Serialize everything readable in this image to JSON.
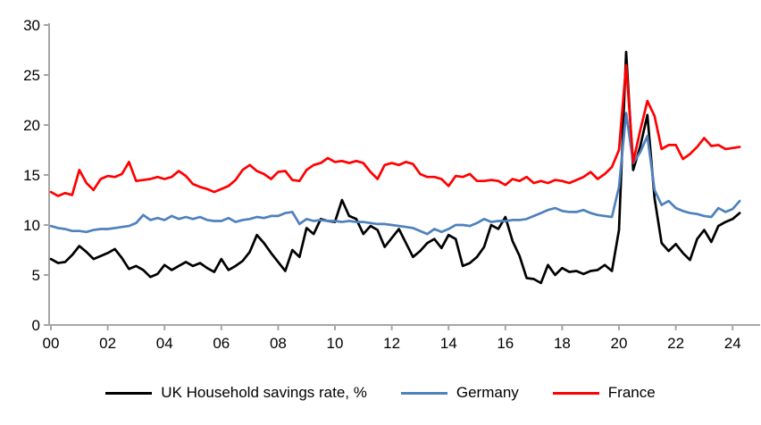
{
  "chart_data": {
    "type": "line",
    "title": "",
    "xlabel": "",
    "ylabel": "",
    "x_unit": "year (quarterly observations)",
    "x_start": 2000,
    "x_step": 0.25,
    "xlim": [
      2000,
      2025
    ],
    "ylim": [
      0,
      30
    ],
    "y_ticks": [
      0,
      5,
      10,
      15,
      20,
      25,
      30
    ],
    "x_tick_years": [
      2000,
      2002,
      2004,
      2006,
      2008,
      2010,
      2012,
      2014,
      2016,
      2018,
      2020,
      2022,
      2024
    ],
    "x_tick_labels": [
      "00",
      "02",
      "04",
      "06",
      "08",
      "10",
      "12",
      "14",
      "16",
      "18",
      "20",
      "22",
      "24"
    ],
    "grid": false,
    "legend_position": "bottom",
    "background_color": "#FFFFFF",
    "axis_color": "#A6A6A6",
    "text_color": "#000000",
    "series": [
      {
        "name": "UK Household savings rate, %",
        "color": "#000000",
        "values": [
          6.6,
          6.2,
          6.3,
          7.0,
          7.9,
          7.3,
          6.6,
          6.9,
          7.2,
          7.6,
          6.7,
          5.6,
          5.9,
          5.5,
          4.8,
          5.1,
          6.0,
          5.5,
          5.9,
          6.3,
          5.9,
          6.2,
          5.7,
          5.3,
          6.6,
          5.5,
          5.9,
          6.4,
          7.3,
          9.0,
          8.2,
          7.2,
          6.3,
          5.4,
          7.5,
          6.8,
          9.7,
          9.1,
          10.6,
          10.4,
          10.3,
          12.5,
          10.9,
          10.6,
          9.1,
          9.9,
          9.5,
          7.8,
          8.7,
          9.6,
          8.2,
          6.8,
          7.4,
          8.2,
          8.6,
          7.7,
          9.0,
          8.6,
          5.9,
          6.2,
          6.8,
          7.8,
          10.0,
          9.6,
          10.8,
          8.4,
          6.9,
          4.7,
          4.6,
          4.2,
          6.0,
          5.0,
          5.7,
          5.3,
          5.4,
          5.1,
          5.4,
          5.5,
          6.0,
          5.4,
          9.5,
          27.3,
          15.5,
          17.9,
          21.0,
          12.7,
          8.2,
          7.4,
          8.1,
          7.2,
          6.5,
          8.6,
          9.5,
          8.3,
          9.9,
          10.3,
          10.6,
          11.2
        ]
      },
      {
        "name": "Germany",
        "color": "#4F81BD",
        "values": [
          9.9,
          9.7,
          9.6,
          9.4,
          9.4,
          9.3,
          9.5,
          9.6,
          9.6,
          9.7,
          9.8,
          9.9,
          10.2,
          11.0,
          10.5,
          10.7,
          10.5,
          10.9,
          10.6,
          10.8,
          10.6,
          10.8,
          10.5,
          10.4,
          10.4,
          10.7,
          10.3,
          10.5,
          10.6,
          10.8,
          10.7,
          10.9,
          10.9,
          11.2,
          11.3,
          10.1,
          10.6,
          10.4,
          10.5,
          10.4,
          10.4,
          10.3,
          10.4,
          10.3,
          10.3,
          10.2,
          10.1,
          10.1,
          10.0,
          9.9,
          9.8,
          9.7,
          9.4,
          9.1,
          9.6,
          9.3,
          9.6,
          10.0,
          10.0,
          9.9,
          10.2,
          10.6,
          10.3,
          10.4,
          10.4,
          10.5,
          10.5,
          10.6,
          10.9,
          11.2,
          11.5,
          11.7,
          11.4,
          11.3,
          11.3,
          11.5,
          11.2,
          11.0,
          10.9,
          10.8,
          13.8,
          21.2,
          16.2,
          17.3,
          18.9,
          13.5,
          12.0,
          12.4,
          11.7,
          11.4,
          11.2,
          11.1,
          10.9,
          10.8,
          11.7,
          11.3,
          11.6,
          12.4
        ]
      },
      {
        "name": "France",
        "color": "#FF0000",
        "values": [
          13.3,
          12.9,
          13.2,
          13.0,
          15.5,
          14.2,
          13.5,
          14.6,
          14.9,
          14.8,
          15.1,
          16.3,
          14.4,
          14.5,
          14.6,
          14.8,
          14.6,
          14.8,
          15.4,
          14.9,
          14.1,
          13.8,
          13.6,
          13.3,
          13.6,
          13.9,
          14.5,
          15.5,
          16.0,
          15.4,
          15.1,
          14.6,
          15.3,
          15.4,
          14.5,
          14.4,
          15.5,
          16.0,
          16.2,
          16.7,
          16.3,
          16.4,
          16.2,
          16.4,
          16.2,
          15.3,
          14.6,
          16.0,
          16.2,
          16.0,
          16.3,
          16.1,
          15.1,
          14.8,
          14.8,
          14.6,
          13.9,
          14.9,
          14.8,
          15.1,
          14.4,
          14.4,
          14.5,
          14.4,
          14.0,
          14.6,
          14.4,
          14.8,
          14.2,
          14.4,
          14.2,
          14.5,
          14.4,
          14.2,
          14.5,
          14.8,
          15.3,
          14.6,
          15.1,
          15.8,
          17.5,
          26.0,
          16.3,
          19.5,
          22.4,
          20.9,
          17.6,
          18.0,
          18.0,
          16.6,
          17.1,
          17.8,
          18.7,
          17.9,
          18.0,
          17.6,
          17.7,
          17.8
        ]
      }
    ]
  },
  "legend": {
    "items": [
      {
        "label": "UK Household savings rate, %",
        "color": "#000000"
      },
      {
        "label": "Germany",
        "color": "#4F81BD"
      },
      {
        "label": "France",
        "color": "#FF0000"
      }
    ]
  }
}
